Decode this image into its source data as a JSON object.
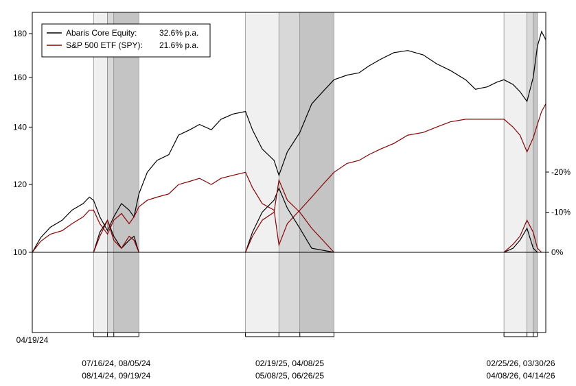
{
  "chart_data": {
    "type": "line",
    "title": "",
    "colors": {
      "fund": "#000000",
      "benchmark": "#8b0000",
      "shade_light": "#f0f0f0",
      "shade_mid": "#d8d8d8",
      "shade_dark": "#c4c4c4"
    },
    "legend": {
      "position": "top-left",
      "entries": [
        {
          "label": "Abaris Core Equity:",
          "value": "32.6% p.a."
        },
        {
          "label": "S&P 500 ETF (SPY):",
          "value": "21.6% p.a."
        }
      ]
    },
    "x_start_label": "04/19/24",
    "x_range": [
      "2024-04-19",
      "2026-04-26"
    ],
    "y_left": {
      "scale": "log",
      "ylim": [
        95,
        185
      ],
      "ticks": [
        "100",
        "120",
        "140",
        "160",
        "180"
      ]
    },
    "y_right": {
      "ylim": [
        -20,
        0
      ],
      "ticks": [
        "0%",
        "-10%",
        "-20%"
      ]
    },
    "drawdown_periods": [
      {
        "label_top": "07/16/24, 08/05/24",
        "label_bottom": "08/14/24, 09/19/24",
        "start": "2024-07-16",
        "trough": "2024-08-05",
        "recovery_a": "2024-08-14",
        "recovery_b": "2024-09-19"
      },
      {
        "label_top": "02/19/25, 04/08/25",
        "label_bottom": "05/08/25, 06/26/25",
        "start": "2025-02-19",
        "trough": "2025-04-08",
        "recovery_a": "2025-05-08",
        "recovery_b": "2025-06-26"
      },
      {
        "label_top": "02/25/26, 03/30/26",
        "label_bottom": "04/08/26, 04/14/26",
        "start": "2026-02-25",
        "trough": "2026-03-30",
        "recovery_a": "2026-04-08",
        "recovery_b": "2026-04-14"
      }
    ],
    "series": [
      {
        "name": "Abaris Core Equity",
        "points": [
          [
            "2024-04-19",
            100
          ],
          [
            "2024-05-01",
            104
          ],
          [
            "2024-05-15",
            107
          ],
          [
            "2024-06-01",
            109
          ],
          [
            "2024-06-15",
            112
          ],
          [
            "2024-07-01",
            114
          ],
          [
            "2024-07-10",
            116
          ],
          [
            "2024-07-16",
            115
          ],
          [
            "2024-07-25",
            110
          ],
          [
            "2024-08-05",
            106
          ],
          [
            "2024-08-14",
            110
          ],
          [
            "2024-08-25",
            114
          ],
          [
            "2024-09-05",
            112
          ],
          [
            "2024-09-12",
            110
          ],
          [
            "2024-09-19",
            117
          ],
          [
            "2024-10-01",
            124
          ],
          [
            "2024-10-15",
            128
          ],
          [
            "2024-11-01",
            130
          ],
          [
            "2024-11-15",
            137
          ],
          [
            "2024-12-01",
            139
          ],
          [
            "2024-12-15",
            141
          ],
          [
            "2025-01-01",
            139
          ],
          [
            "2025-01-15",
            143
          ],
          [
            "2025-02-01",
            145
          ],
          [
            "2025-02-19",
            146
          ],
          [
            "2025-03-01",
            139
          ],
          [
            "2025-03-15",
            132
          ],
          [
            "2025-04-01",
            128
          ],
          [
            "2025-04-08",
            123
          ],
          [
            "2025-04-20",
            131
          ],
          [
            "2025-05-08",
            138
          ],
          [
            "2025-05-25",
            149
          ],
          [
            "2025-06-10",
            154
          ],
          [
            "2025-06-26",
            159
          ],
          [
            "2025-07-15",
            161
          ],
          [
            "2025-08-01",
            162
          ],
          [
            "2025-08-15",
            165
          ],
          [
            "2025-09-01",
            168
          ],
          [
            "2025-09-20",
            171
          ],
          [
            "2025-10-10",
            172
          ],
          [
            "2025-11-01",
            170
          ],
          [
            "2025-11-20",
            166
          ],
          [
            "2025-12-10",
            163
          ],
          [
            "2026-01-01",
            159
          ],
          [
            "2026-01-15",
            155
          ],
          [
            "2026-02-01",
            156
          ],
          [
            "2026-02-15",
            158
          ],
          [
            "2026-02-25",
            159
          ],
          [
            "2026-03-10",
            157
          ],
          [
            "2026-03-20",
            154
          ],
          [
            "2026-03-30",
            150
          ],
          [
            "2026-04-08",
            160
          ],
          [
            "2026-04-14",
            174
          ],
          [
            "2026-04-20",
            181
          ],
          [
            "2026-04-26",
            177
          ]
        ]
      },
      {
        "name": "S&P 500 ETF (SPY)",
        "points": [
          [
            "2024-04-19",
            100
          ],
          [
            "2024-05-01",
            103
          ],
          [
            "2024-05-15",
            105
          ],
          [
            "2024-06-01",
            106
          ],
          [
            "2024-06-15",
            108
          ],
          [
            "2024-07-01",
            110
          ],
          [
            "2024-07-10",
            112
          ],
          [
            "2024-07-16",
            112
          ],
          [
            "2024-07-25",
            108
          ],
          [
            "2024-08-05",
            105
          ],
          [
            "2024-08-14",
            109
          ],
          [
            "2024-08-25",
            111
          ],
          [
            "2024-09-05",
            108
          ],
          [
            "2024-09-12",
            110
          ],
          [
            "2024-09-19",
            113
          ],
          [
            "2024-10-01",
            115
          ],
          [
            "2024-10-15",
            116
          ],
          [
            "2024-11-01",
            117
          ],
          [
            "2024-11-15",
            120
          ],
          [
            "2024-12-01",
            121
          ],
          [
            "2024-12-15",
            122
          ],
          [
            "2025-01-01",
            120
          ],
          [
            "2025-01-15",
            122
          ],
          [
            "2025-02-01",
            123
          ],
          [
            "2025-02-19",
            124
          ],
          [
            "2025-03-01",
            119
          ],
          [
            "2025-03-15",
            114
          ],
          [
            "2025-04-01",
            112
          ],
          [
            "2025-04-08",
            102
          ],
          [
            "2025-04-20",
            108
          ],
          [
            "2025-05-08",
            112
          ],
          [
            "2025-05-25",
            116
          ],
          [
            "2025-06-10",
            120
          ],
          [
            "2025-06-26",
            124
          ],
          [
            "2025-07-15",
            127
          ],
          [
            "2025-08-01",
            128
          ],
          [
            "2025-08-15",
            130
          ],
          [
            "2025-09-01",
            132
          ],
          [
            "2025-09-20",
            134
          ],
          [
            "2025-10-10",
            137
          ],
          [
            "2025-11-01",
            138
          ],
          [
            "2025-11-20",
            140
          ],
          [
            "2025-12-10",
            142
          ],
          [
            "2026-01-01",
            143
          ],
          [
            "2026-01-15",
            143
          ],
          [
            "2026-02-01",
            143
          ],
          [
            "2026-02-15",
            143
          ],
          [
            "2026-02-25",
            143
          ],
          [
            "2026-03-10",
            140
          ],
          [
            "2026-03-20",
            137
          ],
          [
            "2026-03-30",
            131
          ],
          [
            "2026-04-08",
            136
          ],
          [
            "2026-04-14",
            141
          ],
          [
            "2026-04-20",
            146
          ],
          [
            "2026-04-26",
            149
          ]
        ]
      }
    ],
    "drawdown_series": [
      {
        "name": "Abaris Core Equity",
        "points": [
          [
            "2024-07-16",
            0
          ],
          [
            "2024-07-25",
            -5
          ],
          [
            "2024-08-05",
            -8
          ],
          [
            "2024-08-14",
            -4
          ],
          [
            "2024-08-25",
            -1
          ],
          [
            "2024-09-05",
            -3
          ],
          [
            "2024-09-12",
            -4
          ],
          [
            "2024-09-19",
            0
          ],
          [
            "2025-02-19",
            0
          ],
          [
            "2025-03-01",
            -5
          ],
          [
            "2025-03-15",
            -10
          ],
          [
            "2025-04-01",
            -13
          ],
          [
            "2025-04-08",
            -16
          ],
          [
            "2025-04-20",
            -11
          ],
          [
            "2025-05-08",
            -6
          ],
          [
            "2025-05-25",
            -1
          ],
          [
            "2025-06-26",
            0
          ],
          [
            "2026-02-25",
            0
          ],
          [
            "2026-03-10",
            -1
          ],
          [
            "2026-03-20",
            -3
          ],
          [
            "2026-03-30",
            -6
          ],
          [
            "2026-04-08",
            -1
          ],
          [
            "2026-04-14",
            0
          ]
        ]
      },
      {
        "name": "S&P 500 ETF (SPY)",
        "points": [
          [
            "2024-07-16",
            0
          ],
          [
            "2024-07-25",
            -4
          ],
          [
            "2024-08-05",
            -8
          ],
          [
            "2024-08-14",
            -3
          ],
          [
            "2024-08-25",
            -1
          ],
          [
            "2024-09-05",
            -4
          ],
          [
            "2024-09-12",
            -3
          ],
          [
            "2024-09-19",
            0
          ],
          [
            "2025-02-19",
            0
          ],
          [
            "2025-03-01",
            -4
          ],
          [
            "2025-03-15",
            -8
          ],
          [
            "2025-04-01",
            -10
          ],
          [
            "2025-04-08",
            -18
          ],
          [
            "2025-04-20",
            -13
          ],
          [
            "2025-05-08",
            -10
          ],
          [
            "2025-05-25",
            -6
          ],
          [
            "2025-06-10",
            -3
          ],
          [
            "2025-06-26",
            0
          ],
          [
            "2026-02-25",
            0
          ],
          [
            "2026-03-10",
            -2
          ],
          [
            "2026-03-20",
            -4
          ],
          [
            "2026-03-30",
            -8
          ],
          [
            "2026-04-08",
            -5
          ],
          [
            "2026-04-14",
            -1
          ],
          [
            "2026-04-20",
            0
          ]
        ]
      }
    ]
  }
}
